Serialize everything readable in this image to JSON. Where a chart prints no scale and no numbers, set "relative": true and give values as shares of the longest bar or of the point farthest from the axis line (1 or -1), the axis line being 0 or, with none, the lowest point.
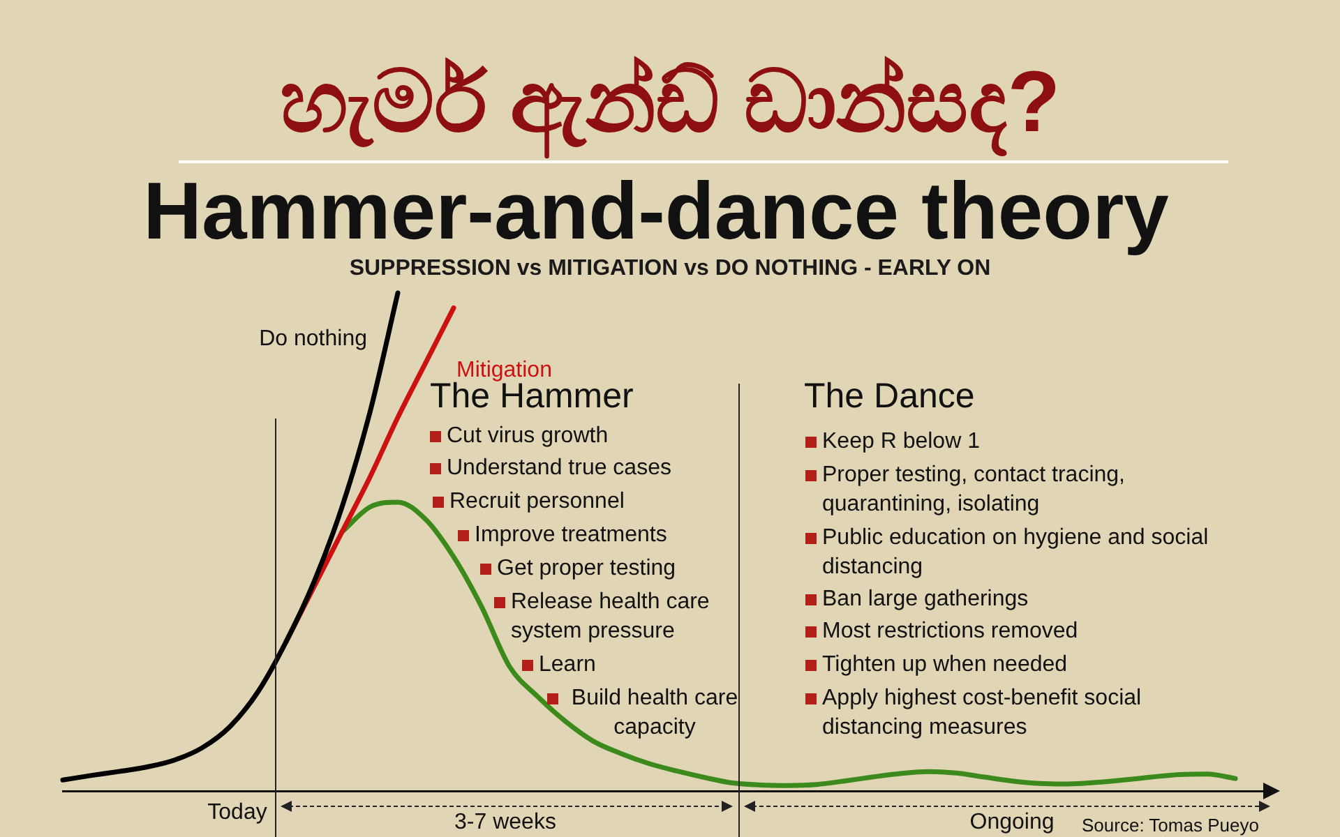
{
  "chart_data": {
    "type": "line",
    "title": "Hammer-and-dance theory",
    "subtitle": "SUPPRESSION vs MITIGATION vs DO NOTHING - EARLY ON",
    "relative": true,
    "legend": false,
    "grid": false,
    "marker": "none",
    "categories": [
      null,
      null,
      null,
      null,
      null,
      null,
      null,
      null,
      null,
      null,
      null,
      null,
      null,
      null,
      null,
      null,
      null,
      null,
      null,
      null,
      null,
      null,
      null,
      null,
      null,
      null,
      null,
      null,
      null,
      null,
      null,
      null,
      null,
      null,
      null,
      null,
      null,
      null,
      null,
      null,
      null,
      null,
      null,
      null
    ],
    "series": [
      {
        "name": "Do nothing",
        "color": "#000000",
        "values": [
          0.022,
          0.031,
          0.039,
          0.048,
          0.062,
          0.087,
          0.13,
          0.2,
          0.3,
          0.42,
          0.57,
          0.76,
          1,
          null,
          null,
          null,
          null,
          null,
          null,
          null,
          null,
          null,
          null,
          null,
          null,
          null,
          null,
          null,
          null,
          null,
          null,
          null,
          null,
          null,
          null,
          null,
          null,
          null,
          null,
          null,
          null,
          null,
          null,
          null
        ]
      },
      {
        "name": "Mitigation",
        "color": "#cc1111",
        "values": [
          null,
          null,
          null,
          null,
          null,
          null,
          null,
          null,
          0.3,
          0.41,
          0.52,
          0.63,
          0.75,
          0.86,
          0.97,
          null,
          null,
          null,
          null,
          null,
          null,
          null,
          null,
          null,
          null,
          null,
          null,
          null,
          null,
          null,
          null,
          null,
          null,
          null,
          null,
          null,
          null,
          null,
          null,
          null,
          null,
          null,
          null,
          null
        ]
      },
      {
        "color": "#3d8a1c",
        "values": [
          null,
          null,
          null,
          null,
          null,
          null,
          null,
          null,
          null,
          null,
          0.52,
          0.57,
          0.58,
          0.545,
          0.47,
          0.37,
          0.25,
          0.19,
          0.14,
          0.1,
          0.075,
          0.055,
          0.04,
          0.027,
          0.016,
          0.012,
          0.011,
          0.013,
          0.02,
          0.028,
          0.035,
          0.039,
          0.036,
          0.028,
          0.02,
          0.015,
          0.014,
          0.017,
          0.022,
          0.028,
          0.033,
          0.034,
          0.025,
          null
        ]
      }
    ],
    "annotations": [
      "හැමර් ඇන්ඩ් ඩාන්සද?",
      "The Hammer",
      "Cut virus growth",
      "Understand true cases",
      "Recruit personnel",
      "Improve treatments",
      "Get proper testing",
      "Release health care system pressure",
      "Learn",
      "Build health care capacity",
      "The Dance",
      "Keep R below 1",
      "Proper testing, contact tracing, quarantining, isolating",
      "Public education on hygiene and social distancing",
      "Ban large gatherings",
      "Most restrictions removed",
      "Tighten up when needed",
      "Apply highest cost-benefit social distancing measures",
      "Today",
      "3-7 weeks",
      "Ongoing",
      "Source: Tomas Pueyo"
    ]
  }
}
